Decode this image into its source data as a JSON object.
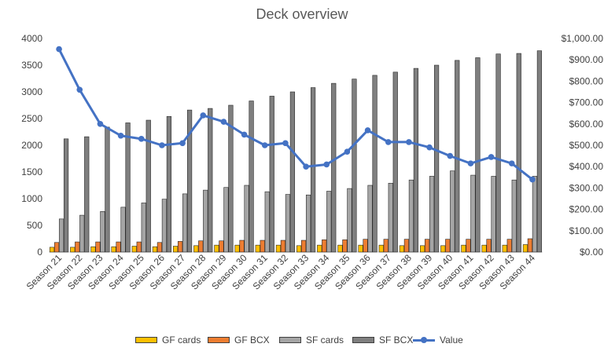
{
  "chart_data": {
    "type": "bar",
    "title": "Deck overview",
    "categories": [
      "Season 21",
      "Season 22",
      "Season 23",
      "Season 24",
      "Season 25",
      "Season 26",
      "Season 27",
      "Season 28",
      "Season 29",
      "Season 30",
      "Season 31",
      "Season 32",
      "Season 33",
      "Season 34",
      "Season 35",
      "Season 36",
      "Season 37",
      "Season 38",
      "Season 39",
      "Season 40",
      "Season 41",
      "Season 42",
      "Season 43",
      "Season 44"
    ],
    "series": [
      {
        "name": "GF cards",
        "type": "bar",
        "axis": "left",
        "color": "#FFC000",
        "values": [
          90,
          90,
          100,
          100,
          110,
          100,
          110,
          120,
          130,
          130,
          130,
          130,
          120,
          130,
          130,
          130,
          130,
          120,
          120,
          120,
          130,
          130,
          130,
          140
        ]
      },
      {
        "name": "GF BCX",
        "type": "bar",
        "axis": "left",
        "color": "#ED7D31",
        "values": [
          180,
          190,
          190,
          190,
          190,
          180,
          200,
          210,
          210,
          220,
          220,
          220,
          220,
          230,
          230,
          240,
          240,
          240,
          240,
          240,
          240,
          240,
          240,
          250
        ]
      },
      {
        "name": "SF cards",
        "type": "bar",
        "axis": "left",
        "color": "#A5A5A5",
        "values": [
          620,
          690,
          760,
          840,
          920,
          990,
          1090,
          1160,
          1210,
          1250,
          1130,
          1080,
          1070,
          1140,
          1190,
          1250,
          1290,
          1350,
          1420,
          1520,
          1440,
          1420,
          1350,
          1420
        ]
      },
      {
        "name": "SF BCX",
        "type": "bar",
        "axis": "left",
        "color": "#7F7F7F",
        "values": [
          2120,
          2160,
          2340,
          2420,
          2470,
          2540,
          2660,
          2690,
          2750,
          2830,
          2920,
          3000,
          3080,
          3160,
          3240,
          3310,
          3370,
          3440,
          3500,
          3590,
          3640,
          3710,
          3720,
          3770
        ]
      },
      {
        "name": "Value",
        "type": "line",
        "axis": "right",
        "color": "#4472C4",
        "values": [
          950,
          760,
          600,
          545,
          530,
          500,
          510,
          640,
          610,
          550,
          500,
          510,
          400,
          410,
          470,
          570,
          515,
          515,
          490,
          450,
          415,
          445,
          415,
          340
        ]
      }
    ],
    "y_left": {
      "min": 0,
      "max": 4000,
      "ticks": [
        "0",
        "500",
        "1000",
        "1500",
        "2000",
        "2500",
        "3000",
        "3500",
        "4000"
      ]
    },
    "y_right": {
      "min": 0,
      "max": 1000,
      "ticks": [
        "$0.00",
        "$100.00",
        "$200.00",
        "$300.00",
        "$400.00",
        "$500.00",
        "$600.00",
        "$700.00",
        "$800.00",
        "$900.00",
        "$1,000.00"
      ]
    },
    "grid": false,
    "legend_position": "bottom"
  }
}
